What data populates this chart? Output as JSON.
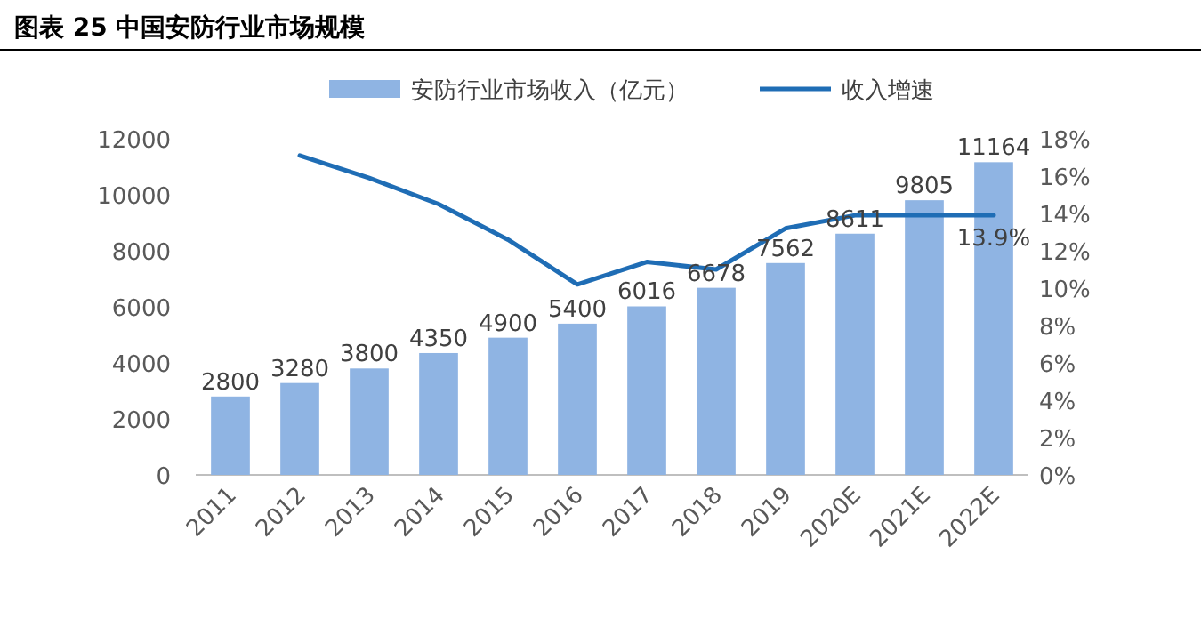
{
  "chart_data": {
    "type": "bar",
    "title": "图表 25 中国安防行业市场规模",
    "categories": [
      "2011",
      "2012",
      "2013",
      "2014",
      "2015",
      "2016",
      "2017",
      "2018",
      "2019",
      "2020E",
      "2021E",
      "2022E"
    ],
    "series": [
      {
        "name": "安防行业市场收入（亿元）",
        "color": "#8fb4e3",
        "values": [
          2800,
          3280,
          3800,
          4350,
          4900,
          5400,
          6016,
          6678,
          7562,
          8611,
          9805,
          11164
        ],
        "data_labels": true
      },
      {
        "name": "收入增速",
        "type": "line",
        "axis": "y2",
        "color": "#1f6db5",
        "values": [
          null,
          17.1,
          15.9,
          14.5,
          12.6,
          10.2,
          11.4,
          11.0,
          13.2,
          13.9,
          13.9,
          13.9
        ],
        "value_labels": [
          null,
          null,
          null,
          null,
          null,
          null,
          null,
          null,
          null,
          null,
          null,
          "13.9%"
        ]
      }
    ],
    "ylim": [
      0,
      12000
    ],
    "yticks": [
      0,
      2000,
      4000,
      6000,
      8000,
      10000,
      12000
    ],
    "y2lim": [
      0,
      18
    ],
    "y2ticks": [
      {
        "value": 0,
        "label": "0%"
      },
      {
        "value": 2,
        "label": "2%"
      },
      {
        "value": 4,
        "label": "4%"
      },
      {
        "value": 6,
        "label": "6%"
      },
      {
        "value": 8,
        "label": "8%"
      },
      {
        "value": 10,
        "label": "10%"
      },
      {
        "value": 12,
        "label": "12%"
      },
      {
        "value": 14,
        "label": "14%"
      },
      {
        "value": 16,
        "label": "16%"
      },
      {
        "value": 18,
        "label": "18%"
      }
    ],
    "legend": "top",
    "grid": false,
    "marker": "none",
    "line_style": "solid"
  }
}
